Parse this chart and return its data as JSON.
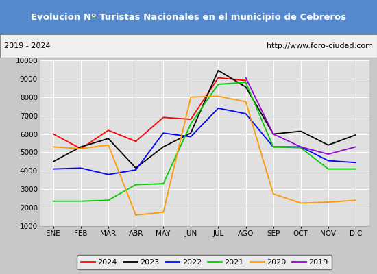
{
  "title": "Evolucion Nº Turistas Nacionales en el municipio de Cebreros",
  "subtitle_left": "2019 - 2024",
  "subtitle_right": "http://www.foro-ciudad.com",
  "months": [
    "ENE",
    "FEB",
    "MAR",
    "ABR",
    "MAY",
    "JUN",
    "JUL",
    "AGO",
    "SEP",
    "OCT",
    "NOV",
    "DIC"
  ],
  "ylim": [
    1000,
    10000
  ],
  "yticks": [
    1000,
    2000,
    3000,
    4000,
    5000,
    6000,
    7000,
    8000,
    9000,
    10000
  ],
  "series": {
    "2024": {
      "color": "#ff0000",
      "data": [
        6000,
        5200,
        6200,
        5600,
        6900,
        6800,
        9050,
        8900,
        null,
        null,
        null,
        null
      ]
    },
    "2023": {
      "color": "#000000",
      "data": [
        4500,
        5300,
        5750,
        4150,
        5300,
        6050,
        9450,
        8550,
        6000,
        6150,
        5400,
        5950
      ]
    },
    "2022": {
      "color": "#0000ff",
      "data": [
        4100,
        4150,
        3800,
        4050,
        6050,
        5850,
        7400,
        7100,
        5300,
        5300,
        4550,
        4450
      ]
    },
    "2021": {
      "color": "#00cc00",
      "data": [
        2350,
        2350,
        2400,
        3250,
        3300,
        6550,
        8700,
        8800,
        5300,
        5250,
        4100,
        4100
      ]
    },
    "2020": {
      "color": "#ff9900",
      "data": [
        5300,
        5200,
        5400,
        1600,
        1750,
        8000,
        8050,
        7750,
        2750,
        2250,
        2300,
        2400
      ]
    },
    "2019": {
      "color": "#9900cc",
      "data": [
        null,
        null,
        null,
        null,
        null,
        null,
        null,
        9050,
        6000,
        5300,
        4900,
        5300
      ]
    }
  },
  "fig_bg": "#c8c8c8",
  "title_bg": "#5588cc",
  "title_color": "#ffffff",
  "title_fontsize": 9.5,
  "subtitle_bg": "#f0f0f0",
  "subtitle_color": "#000000",
  "plot_bg": "#e0e0e0",
  "grid_color": "#ffffff",
  "legend_order": [
    "2024",
    "2023",
    "2022",
    "2021",
    "2020",
    "2019"
  ]
}
